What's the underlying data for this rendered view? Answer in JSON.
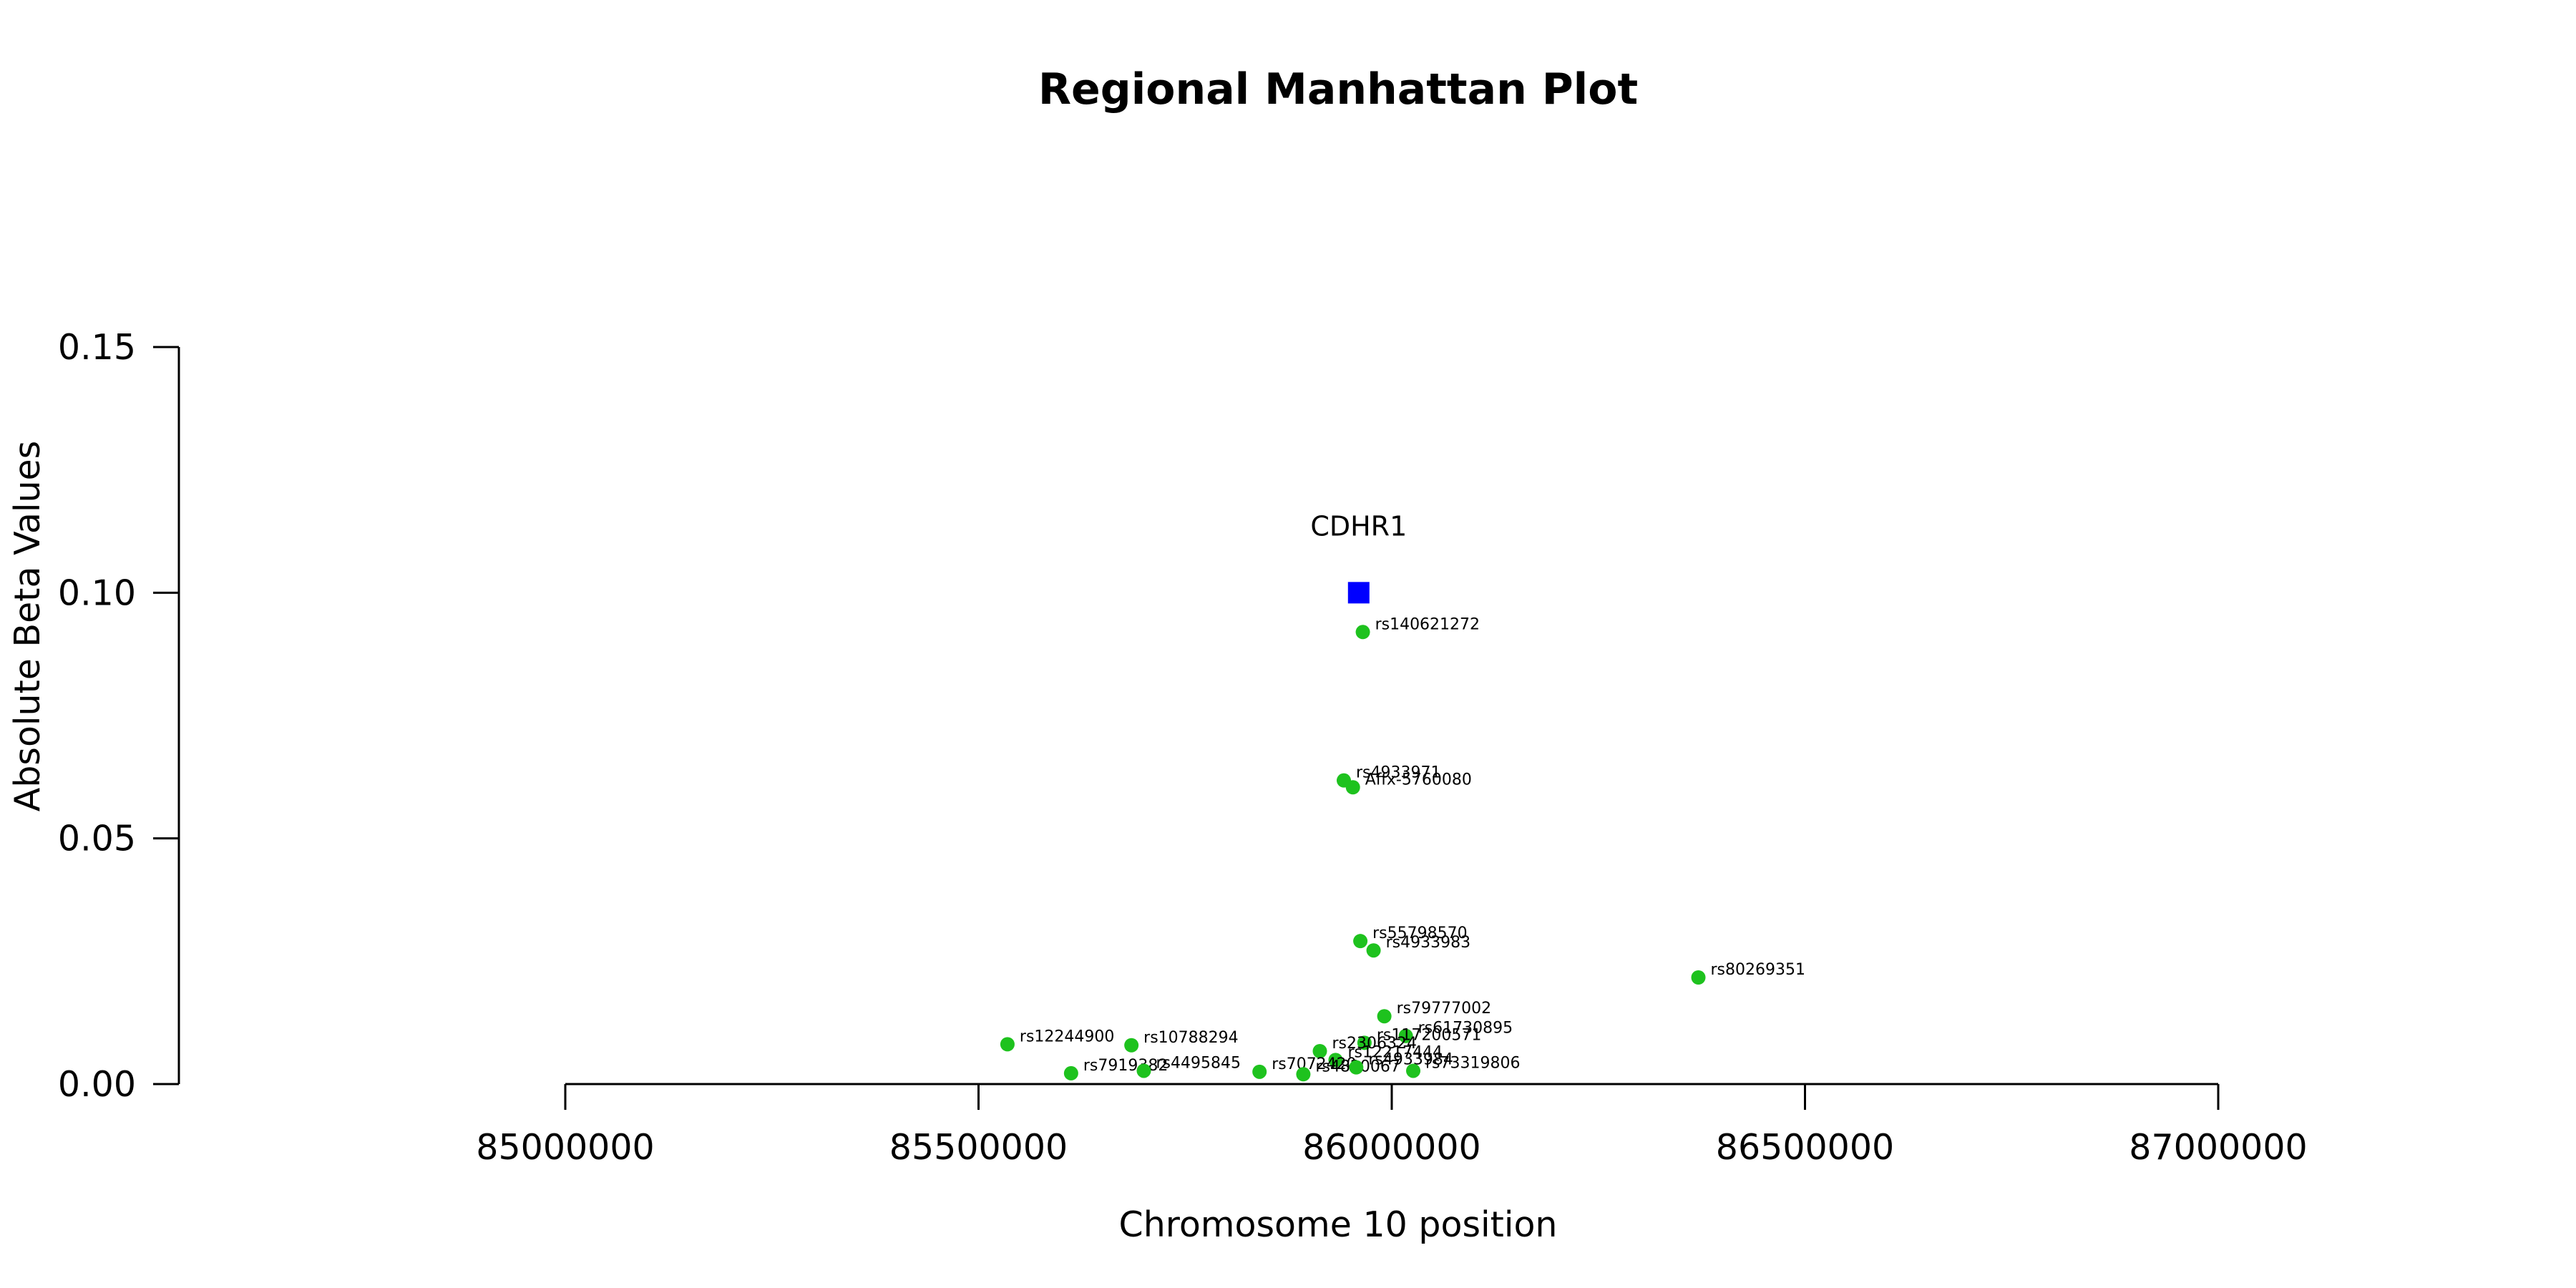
{
  "chart_data": {
    "type": "scatter",
    "title": "Regional Manhattan Plot",
    "xlabel": "Chromosome 10 position",
    "ylabel": "Absolute Beta Values",
    "xlim": [
      84533000,
      87467000
    ],
    "ylim": [
      0,
      0.15
    ],
    "xticks": [
      85000000,
      85500000,
      86000000,
      86500000,
      87000000
    ],
    "xtick_labels": [
      "85000000",
      "85500000",
      "86000000",
      "86500000",
      "87000000"
    ],
    "yticks": [
      0,
      0.05,
      0.1,
      0.15
    ],
    "ytick_labels": [
      "0.00",
      "0.05",
      "0.10",
      "0.15"
    ],
    "grid": false,
    "colors": {
      "snp": "#1ec21e",
      "gene": "#0000ff",
      "axis": "#000000"
    },
    "gene": {
      "name": "CDHR1",
      "x": 85960000,
      "y": 0.1
    },
    "series": [
      {
        "name": "",
        "points": [
          {
            "label": "rs140621272",
            "x": 85965000,
            "y": 0.092
          },
          {
            "label": "rs4933971",
            "x": 85942000,
            "y": 0.0618
          },
          {
            "label": "Affx-5760080",
            "x": 85953000,
            "y": 0.0604
          },
          {
            "label": "rs55798570",
            "x": 85962000,
            "y": 0.0291
          },
          {
            "label": "rs4933983",
            "x": 85978000,
            "y": 0.0272
          },
          {
            "label": "rs80269351",
            "x": 86371000,
            "y": 0.0217
          },
          {
            "label": "rs79777002",
            "x": 85991000,
            "y": 0.0138
          },
          {
            "label": "rs61730895",
            "x": 86017000,
            "y": 0.0098
          },
          {
            "label": "rs117200571",
            "x": 85967000,
            "y": 0.0084
          },
          {
            "label": "rs12244900",
            "x": 85535000,
            "y": 0.0081
          },
          {
            "label": "rs10788294",
            "x": 85685000,
            "y": 0.0079
          },
          {
            "label": "rs2306324",
            "x": 85913000,
            "y": 0.0067
          },
          {
            "label": "rs12217444",
            "x": 85932000,
            "y": 0.0049
          },
          {
            "label": "rs7919382",
            "x": 85612000,
            "y": 0.0022
          },
          {
            "label": "rs4495845",
            "x": 85700000,
            "y": 0.0027
          },
          {
            "label": "rs7072420",
            "x": 85840000,
            "y": 0.0025
          },
          {
            "label": "rs4820067",
            "x": 85893000,
            "y": 0.002
          },
          {
            "label": "rs4933984",
            "x": 85957000,
            "y": 0.0034
          },
          {
            "label": "rs73319806",
            "x": 86026000,
            "y": 0.0027
          }
        ]
      }
    ]
  }
}
